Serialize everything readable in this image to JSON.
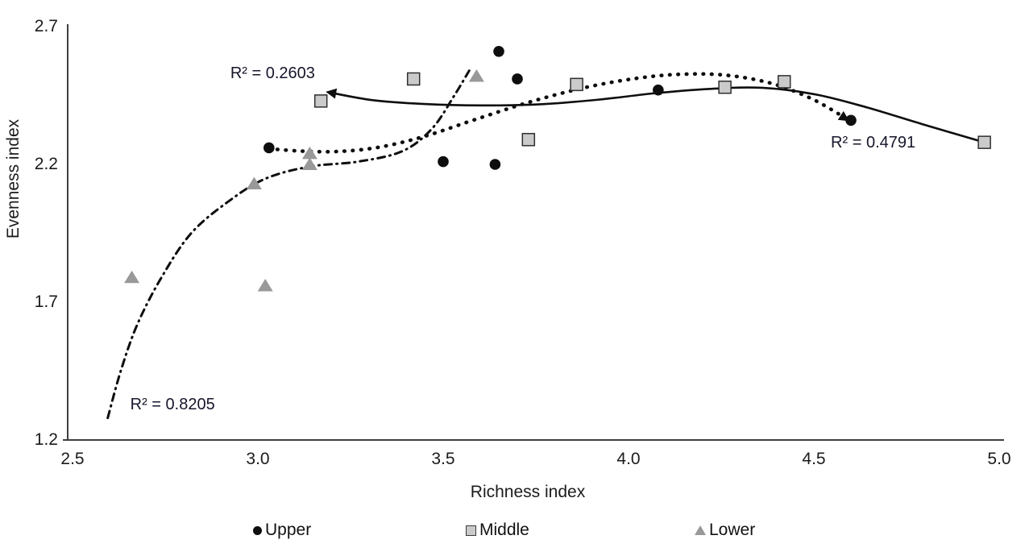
{
  "page": {
    "background": "#ffffff"
  },
  "chart_data": {
    "type": "scatter",
    "title": "",
    "xlabel": "Richness index",
    "ylabel": "Evenness index",
    "xlim": [
      2.5,
      5.0
    ],
    "ylim": [
      1.2,
      2.7
    ],
    "x_ticks": [
      "2.5",
      "3.0",
      "3.5",
      "4.0",
      "4.5",
      "5.0"
    ],
    "y_ticks": [
      "2.7",
      "2.2",
      "1.7",
      "1.2"
    ],
    "grid": false,
    "legend_position": "bottom",
    "axis_color": "#3f3f3f",
    "text_color": "#1b1b1b",
    "series": [
      {
        "name": "Upper",
        "marker": "circle",
        "marker_color": "#0e0e0e",
        "points": [
          [
            3.03,
            2.26
          ],
          [
            3.5,
            2.21
          ],
          [
            3.64,
            2.2
          ],
          [
            3.65,
            2.61
          ],
          [
            3.7,
            2.51
          ],
          [
            4.08,
            2.47
          ],
          [
            4.6,
            2.36
          ]
        ],
        "trend": {
          "line_style": "dotted",
          "color": "#0e0e0e",
          "arrow": "end",
          "r2_label": "R² = 0.4791",
          "r2_label_pos": [
            4.66,
            2.28
          ],
          "path": [
            [
              3.03,
              2.257
            ],
            [
              3.12,
              2.248
            ],
            [
              3.22,
              2.247
            ],
            [
              3.33,
              2.263
            ],
            [
              3.45,
              2.302
            ],
            [
              3.58,
              2.36
            ],
            [
              3.73,
              2.425
            ],
            [
              3.88,
              2.478
            ],
            [
              4.02,
              2.512
            ],
            [
              4.14,
              2.527
            ],
            [
              4.26,
              2.524
            ],
            [
              4.38,
              2.496
            ],
            [
              4.48,
              2.447
            ],
            [
              4.55,
              2.397
            ],
            [
              4.59,
              2.362
            ]
          ]
        }
      },
      {
        "name": "Middle",
        "marker": "square",
        "marker_color": "#cacaca",
        "marker_border": "#2f2f2f",
        "points": [
          [
            3.17,
            2.43
          ],
          [
            3.42,
            2.51
          ],
          [
            3.73,
            2.29
          ],
          [
            3.86,
            2.49
          ],
          [
            4.26,
            2.48
          ],
          [
            4.42,
            2.5
          ],
          [
            4.96,
            2.28
          ]
        ],
        "trend": {
          "line_style": "solid",
          "color": "#0e0e0e",
          "arrow": "start",
          "r2_label": "R² = 0.2603",
          "r2_label_pos": [
            3.04,
            2.53
          ],
          "path": [
            [
              3.19,
              2.462
            ],
            [
              3.31,
              2.433
            ],
            [
              3.45,
              2.419
            ],
            [
              3.6,
              2.414
            ],
            [
              3.76,
              2.418
            ],
            [
              3.92,
              2.435
            ],
            [
              4.07,
              2.458
            ],
            [
              4.22,
              2.474
            ],
            [
              4.36,
              2.478
            ],
            [
              4.5,
              2.455
            ],
            [
              4.64,
              2.408
            ],
            [
              4.79,
              2.347
            ],
            [
              4.96,
              2.28
            ]
          ]
        }
      },
      {
        "name": "Lower",
        "marker": "triangle",
        "marker_color": "#999999",
        "points": [
          [
            2.66,
            1.79
          ],
          [
            2.99,
            2.13
          ],
          [
            3.02,
            1.76
          ],
          [
            3.14,
            2.24
          ],
          [
            3.14,
            2.2
          ],
          [
            3.59,
            2.52
          ]
        ],
        "trend": {
          "line_style": "dash-dot",
          "color": "#0e0e0e",
          "arrow": "none",
          "r2_label": "R² = 0.8205",
          "r2_label_pos": [
            2.77,
            1.33
          ],
          "path": [
            [
              2.595,
              1.28
            ],
            [
              2.63,
              1.45
            ],
            [
              2.675,
              1.62
            ],
            [
              2.74,
              1.79
            ],
            [
              2.82,
              1.95
            ],
            [
              2.92,
              2.065
            ],
            [
              3.02,
              2.148
            ],
            [
              3.14,
              2.192
            ],
            [
              3.27,
              2.21
            ],
            [
              3.39,
              2.248
            ],
            [
              3.47,
              2.33
            ],
            [
              3.53,
              2.45
            ],
            [
              3.57,
              2.54
            ]
          ]
        }
      }
    ],
    "legend": [
      {
        "label": "Upper",
        "marker": "circle"
      },
      {
        "label": "Middle",
        "marker": "square"
      },
      {
        "label": "Lower",
        "marker": "triangle"
      }
    ]
  }
}
